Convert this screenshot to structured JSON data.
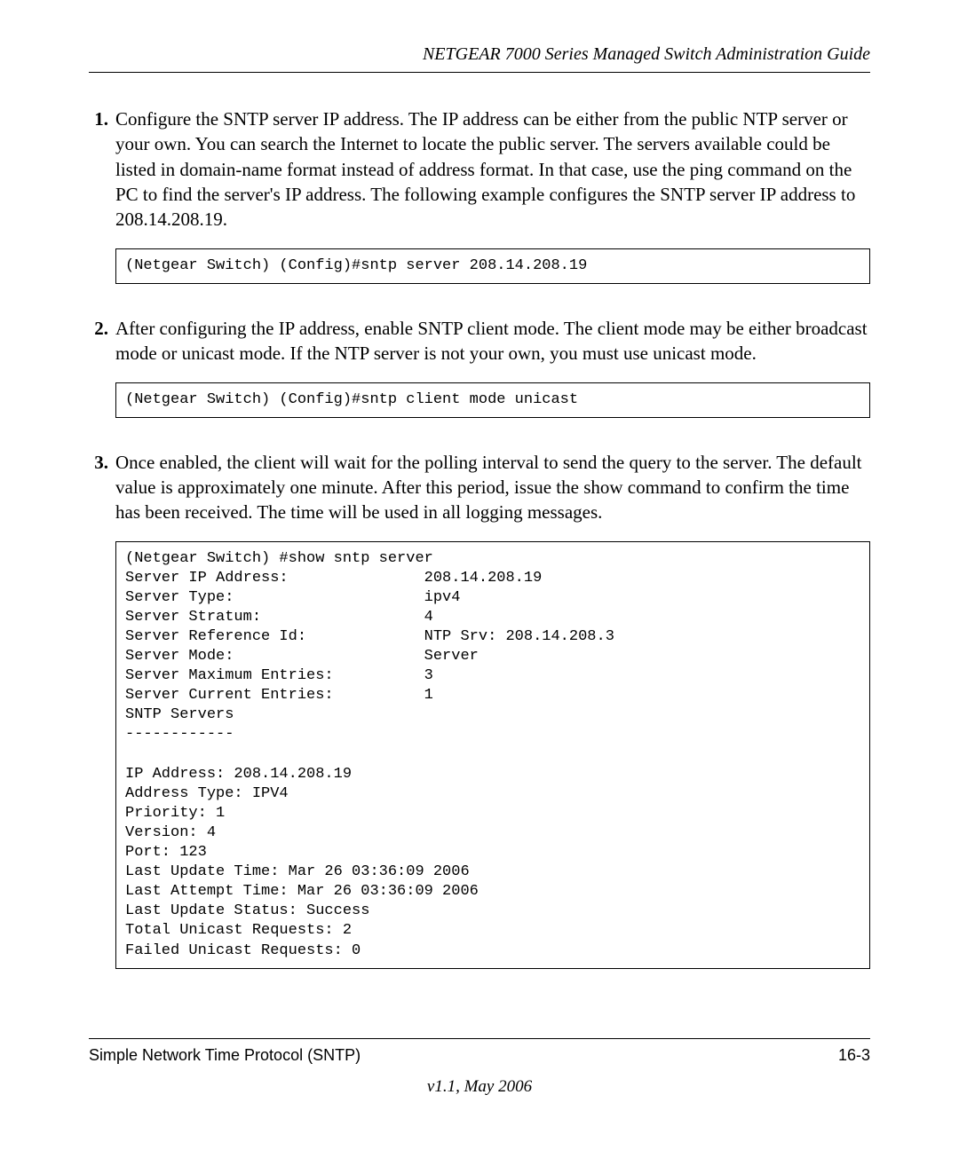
{
  "header": {
    "title": "NETGEAR 7000  Series Managed Switch Administration Guide"
  },
  "steps": [
    {
      "num": "1.",
      "text": "Configure the SNTP server IP address. The IP address can be either from the public NTP server or your own. You can search the Internet to locate the public server. The servers available could be listed in domain-name format instead of address format. In that case, use the ping command on the PC to find the server's IP address. The following example configures the SNTP server IP address to 208.14.208.19.",
      "code": "(Netgear Switch) (Config)#sntp server 208.14.208.19"
    },
    {
      "num": "2.",
      "text": "After configuring the IP address, enable SNTP client mode. The client mode may be either broadcast mode or unicast mode. If the NTP server is not your own, you must use unicast mode.",
      "code": "(Netgear Switch) (Config)#sntp client mode unicast"
    },
    {
      "num": "3.",
      "text": "Once enabled, the client will wait for the polling interval to send the query to the server. The default value is approximately one minute. After this period, issue the show command to confirm the time has been received. The time will be used in all logging messages.",
      "code": "(Netgear Switch) #show sntp server\nServer IP Address:               208.14.208.19\nServer Type:                     ipv4\nServer Stratum:                  4\nServer Reference Id:             NTP Srv: 208.14.208.3\nServer Mode:                     Server\nServer Maximum Entries:          3\nServer Current Entries:          1\nSNTP Servers\n------------\n\nIP Address: 208.14.208.19\nAddress Type: IPV4\nPriority: 1\nVersion: 4\nPort: 123\nLast Update Time: Mar 26 03:36:09 2006\nLast Attempt Time: Mar 26 03:36:09 2006\nLast Update Status: Success\nTotal Unicast Requests: 2\nFailed Unicast Requests: 0"
    }
  ],
  "footer": {
    "left": "Simple Network Time Protocol (SNTP)",
    "right": "16-3",
    "version": "v1.1, May 2006"
  }
}
